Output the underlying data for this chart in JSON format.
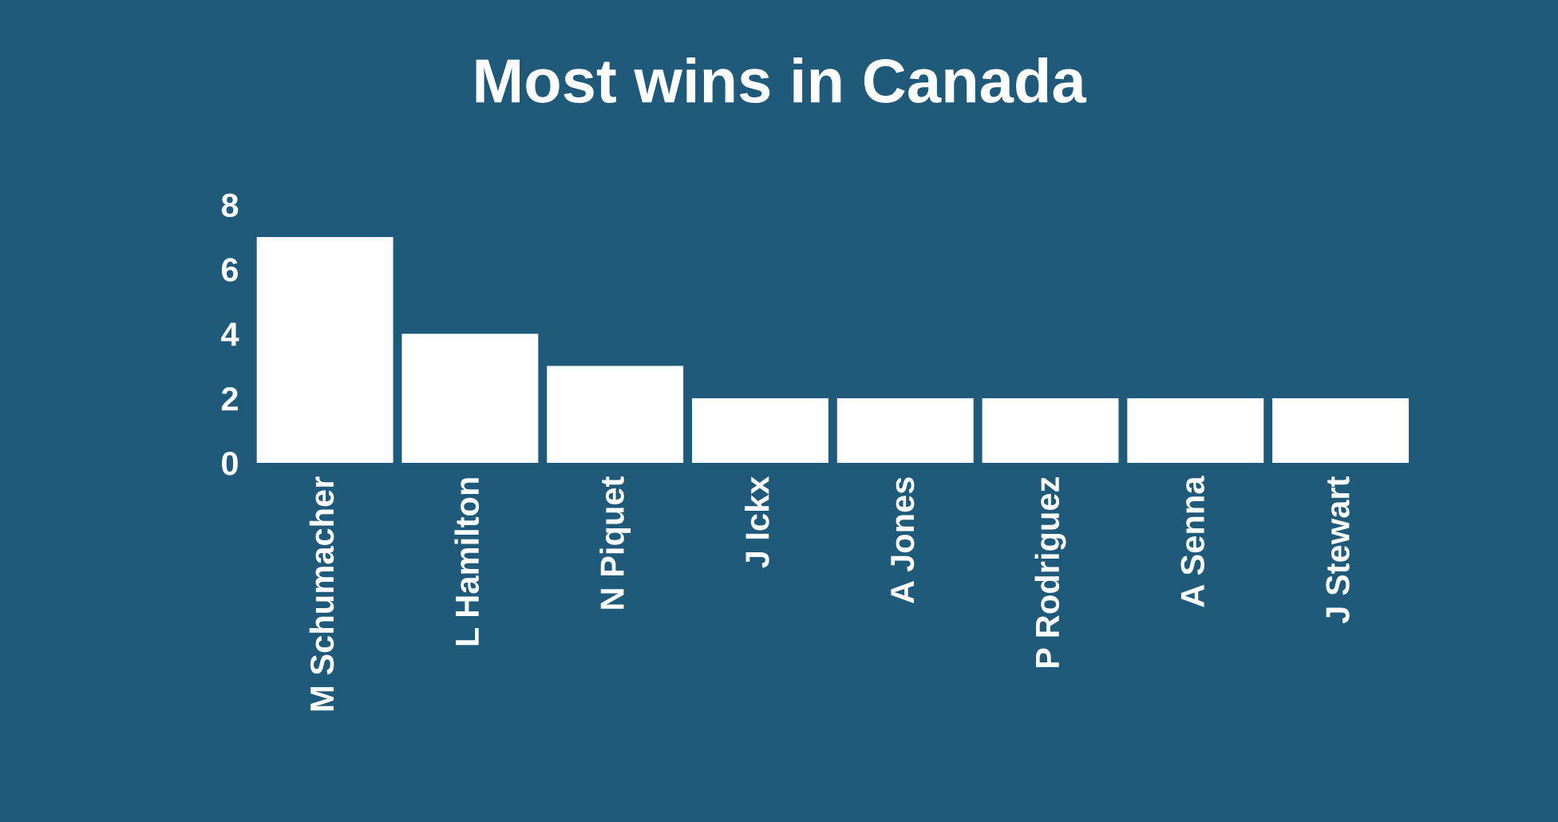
{
  "chart_data": {
    "type": "bar",
    "title": "Most wins in Canada",
    "categories": [
      "M Schumacher",
      "L Hamilton",
      "N Piquet",
      "J Ickx",
      "A Jones",
      "P Rodriguez",
      "A Senna",
      "J Stewart"
    ],
    "values": [
      7,
      4,
      3,
      2,
      2,
      2,
      2,
      2
    ],
    "color": "#ffffff",
    "ylim": [
      0,
      8
    ],
    "yticks": [
      0,
      2,
      4,
      6,
      8
    ],
    "grid": false,
    "legend": false
  }
}
